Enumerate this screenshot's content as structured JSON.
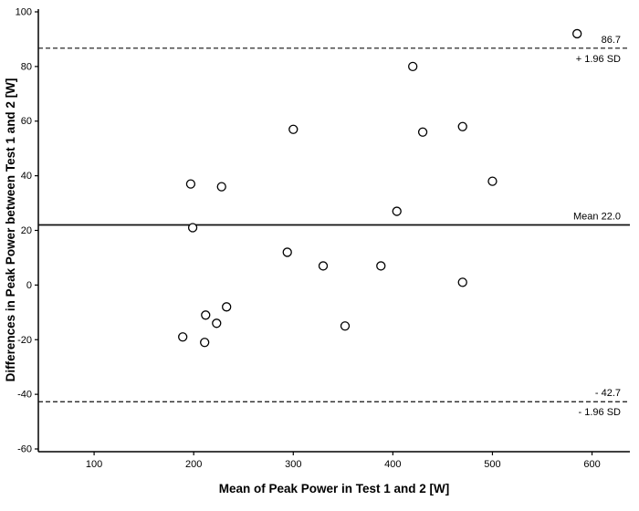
{
  "chart_data": {
    "type": "scatter",
    "title": "",
    "xlabel": "Mean of Peak Power in Test 1 and 2 [W]",
    "ylabel": "Differences in Peak Power between Test 1 and 2 [W]",
    "xlim": [
      44,
      638
    ],
    "ylim": [
      -61,
      101
    ],
    "x_ticks": [
      100,
      200,
      300,
      400,
      500,
      600
    ],
    "y_ticks": [
      -60,
      -40,
      -20,
      0,
      20,
      40,
      60,
      80,
      100
    ],
    "grid": false,
    "legend": false,
    "marker": "open-circle",
    "colors": {
      "axis": "#000000",
      "marker_stroke": "#000000",
      "marker_fill": "#ffffff"
    },
    "points": [
      {
        "x": 585,
        "y": 92
      },
      {
        "x": 420,
        "y": 80
      },
      {
        "x": 470,
        "y": 58
      },
      {
        "x": 300,
        "y": 57
      },
      {
        "x": 430,
        "y": 56
      },
      {
        "x": 500,
        "y": 38
      },
      {
        "x": 197,
        "y": 37
      },
      {
        "x": 228,
        "y": 36
      },
      {
        "x": 404,
        "y": 27
      },
      {
        "x": 199,
        "y": 21
      },
      {
        "x": 294,
        "y": 12
      },
      {
        "x": 330,
        "y": 7
      },
      {
        "x": 388,
        "y": 7
      },
      {
        "x": 470,
        "y": 1
      },
      {
        "x": 233,
        "y": -8
      },
      {
        "x": 212,
        "y": -11
      },
      {
        "x": 223,
        "y": -14
      },
      {
        "x": 352,
        "y": -15
      },
      {
        "x": 189,
        "y": -19
      },
      {
        "x": 211,
        "y": -21
      }
    ],
    "reference_lines": [
      {
        "name": "upper-loa",
        "value": 86.7,
        "style": "dashed",
        "label_above": "86.7",
        "label_below": "+ 1.96 SD"
      },
      {
        "name": "mean",
        "value": 22.0,
        "style": "solid",
        "label_above": "Mean 22.0",
        "label_below": ""
      },
      {
        "name": "lower-loa",
        "value": -42.7,
        "style": "dashed",
        "label_above": "- 42.7",
        "label_below": "- 1.96 SD"
      }
    ]
  }
}
